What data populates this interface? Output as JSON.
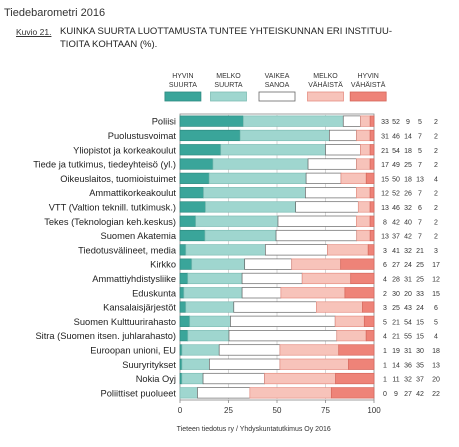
{
  "header": {
    "publication": "Tiedebarometri 2016",
    "figure_label": "Kuvio 21.",
    "figure_title_line1": "KUINKA SUURTA LUOTTAMUSTA TUNTEE YHTEISKUNNAN ERI INSTITUU-",
    "figure_title_line2": "TIOITA KOHTAAN (%)."
  },
  "footer": {
    "source": "Tieteen tiedotus ry / Yhdyskuntatutkimus Oy 2016"
  },
  "chart_data": {
    "type": "bar",
    "stacked": true,
    "orientation": "horizontal",
    "title": "KUINKA SUURTA LUOTTAMUSTA TUNTEE YHTEISKUNNAN ERI INSTITUUTIOITA KOHTAAN (%).",
    "xlim": [
      0,
      100
    ],
    "x_ticks": [
      "0",
      "25",
      "50",
      "75",
      "100"
    ],
    "grid": true,
    "legend_position": "top",
    "series": [
      {
        "label_line1": "HYVIN",
        "label_line2": "SUURTA",
        "color": "#3aa59a",
        "edge": "#2d8a80"
      },
      {
        "label_line1": "MELKO",
        "label_line2": "SUURTA",
        "color": "#9fd6cf",
        "edge": "#7fbdb5"
      },
      {
        "label_line1": "VAIKEA",
        "label_line2": "SANOA",
        "color": "#ffffff",
        "edge": "#666666"
      },
      {
        "label_line1": "MELKO",
        "label_line2": "VÄHÄISTÄ",
        "color": "#f7c3ba",
        "edge": "#e58f84"
      },
      {
        "label_line1": "HYVIN",
        "label_line2": "VÄHÄISTÄ",
        "color": "#ee8378",
        "edge": "#d5665b"
      }
    ],
    "categories": [
      "Poliisi",
      "Puolustusvoimat",
      "Yliopistot ja korkeakoulut",
      "Tiede ja tutkimus, tiedeyhteisö (yl.)",
      "Oikeuslaitos, tuomioistuimet",
      "Ammattikorkeakoulut",
      "VTT (Valtion teknill. tutkimusk.)",
      "Tekes (Teknologian keh.keskus)",
      "Suomen Akatemia",
      "Tiedotusvälineet, media",
      "Kirkko",
      "Ammattiyhdistysliike",
      "Eduskunta",
      "Kansalaisjärjestöt",
      "Suomen Kulttuurirahasto",
      "Sitra (Suomen itsen. juhlarahasto)",
      "Euroopan unioni, EU",
      "Suuryritykset",
      "Nokia Oyj",
      "Poliittiset puolueet"
    ],
    "values": [
      [
        33,
        52,
        9,
        5,
        2
      ],
      [
        31,
        46,
        14,
        7,
        2
      ],
      [
        21,
        54,
        18,
        5,
        2
      ],
      [
        17,
        49,
        25,
        7,
        2
      ],
      [
        15,
        50,
        18,
        13,
        4
      ],
      [
        12,
        52,
        26,
        7,
        2
      ],
      [
        13,
        46,
        32,
        6,
        2
      ],
      [
        8,
        42,
        40,
        7,
        2
      ],
      [
        13,
        37,
        42,
        7,
        2
      ],
      [
        3,
        41,
        32,
        21,
        3
      ],
      [
        6,
        27,
        24,
        25,
        17
      ],
      [
        4,
        28,
        31,
        25,
        12
      ],
      [
        2,
        30,
        20,
        33,
        15
      ],
      [
        3,
        25,
        43,
        24,
        6
      ],
      [
        5,
        21,
        54,
        15,
        5
      ],
      [
        4,
        21,
        55,
        15,
        4
      ],
      [
        1,
        19,
        31,
        30,
        18
      ],
      [
        1,
        14,
        36,
        35,
        13
      ],
      [
        1,
        11,
        32,
        37,
        20
      ],
      [
        0,
        9,
        27,
        42,
        22
      ]
    ]
  }
}
